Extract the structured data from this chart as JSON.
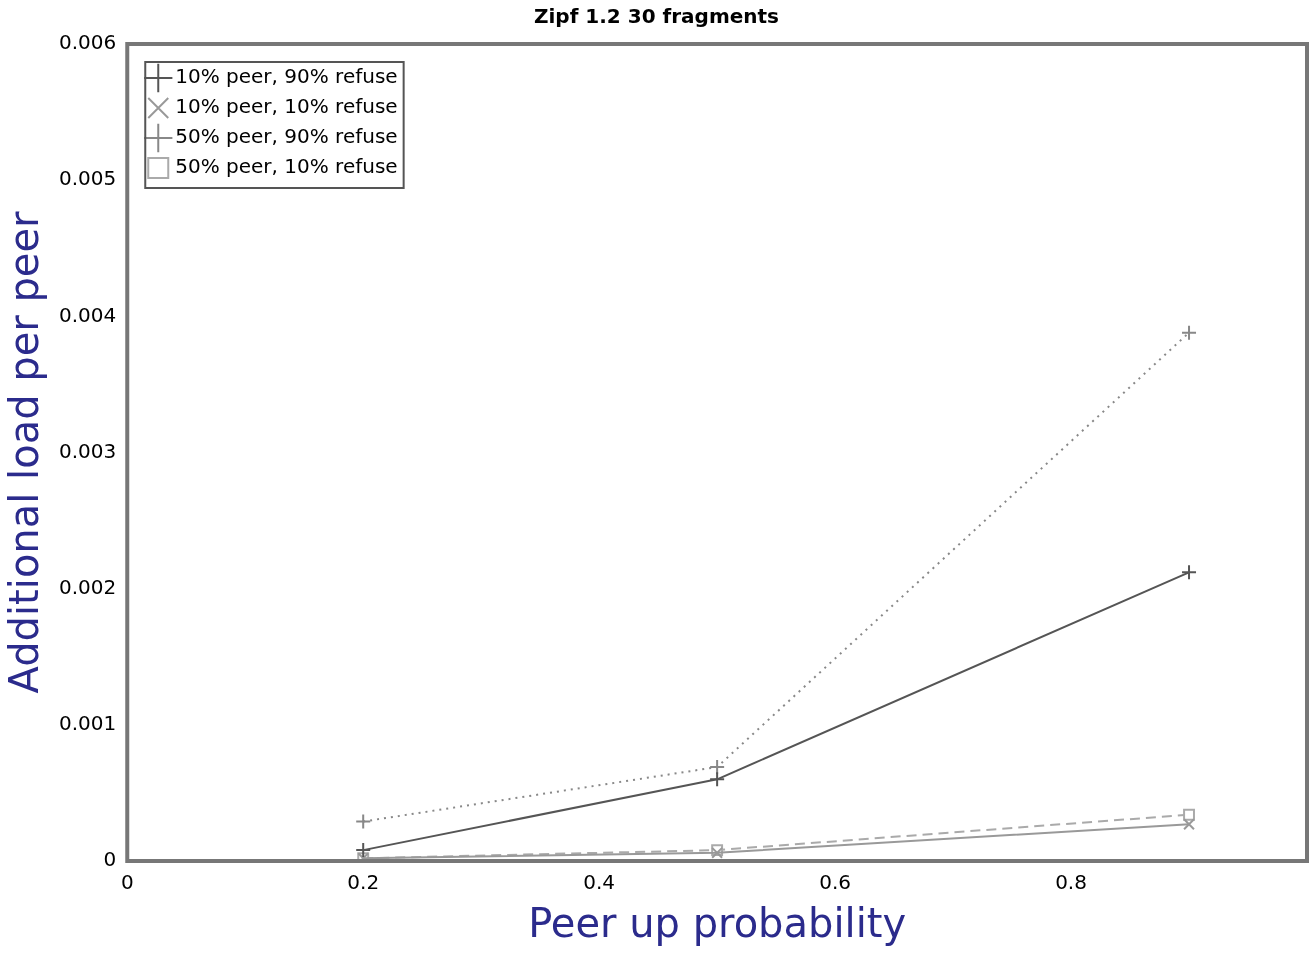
{
  "chart_data": {
    "type": "line",
    "title": "Zipf 1.2 30 fragments",
    "xlabel": "Peer up probability",
    "ylabel": "Additional load per peer",
    "x": [
      0.2,
      0.5,
      0.9
    ],
    "series": [
      {
        "name": "10% peer, 90% refuse",
        "color": "#555555",
        "values": [
          8e-05,
          0.0006,
          0.00212
        ],
        "marker": "cross",
        "line_style": "solid"
      },
      {
        "name": "10% peer, 10% refuse",
        "color": "#999999",
        "values": [
          2e-05,
          6e-05,
          0.00027
        ],
        "marker": "crossRot",
        "line_style": "solid"
      },
      {
        "name": "50% peer, 90% refuse",
        "color": "#888888",
        "values": [
          0.00029,
          0.00069,
          0.00388
        ],
        "marker": "cross",
        "line_style": "dotted"
      },
      {
        "name": "50% peer, 10% refuse",
        "color": "#aaaaaa",
        "values": [
          2e-05,
          8e-05,
          0.00034
        ],
        "marker": "square",
        "line_style": "dashed"
      }
    ],
    "xlim": [
      0,
      1
    ],
    "xticks": [
      0,
      0.2,
      0.4,
      0.6,
      0.8
    ],
    "ylim": [
      0,
      0.006
    ],
    "yticks": [
      0,
      0.001,
      0.002,
      0.003,
      0.004,
      0.005,
      0.006
    ],
    "grid": false,
    "legend": "top left"
  }
}
